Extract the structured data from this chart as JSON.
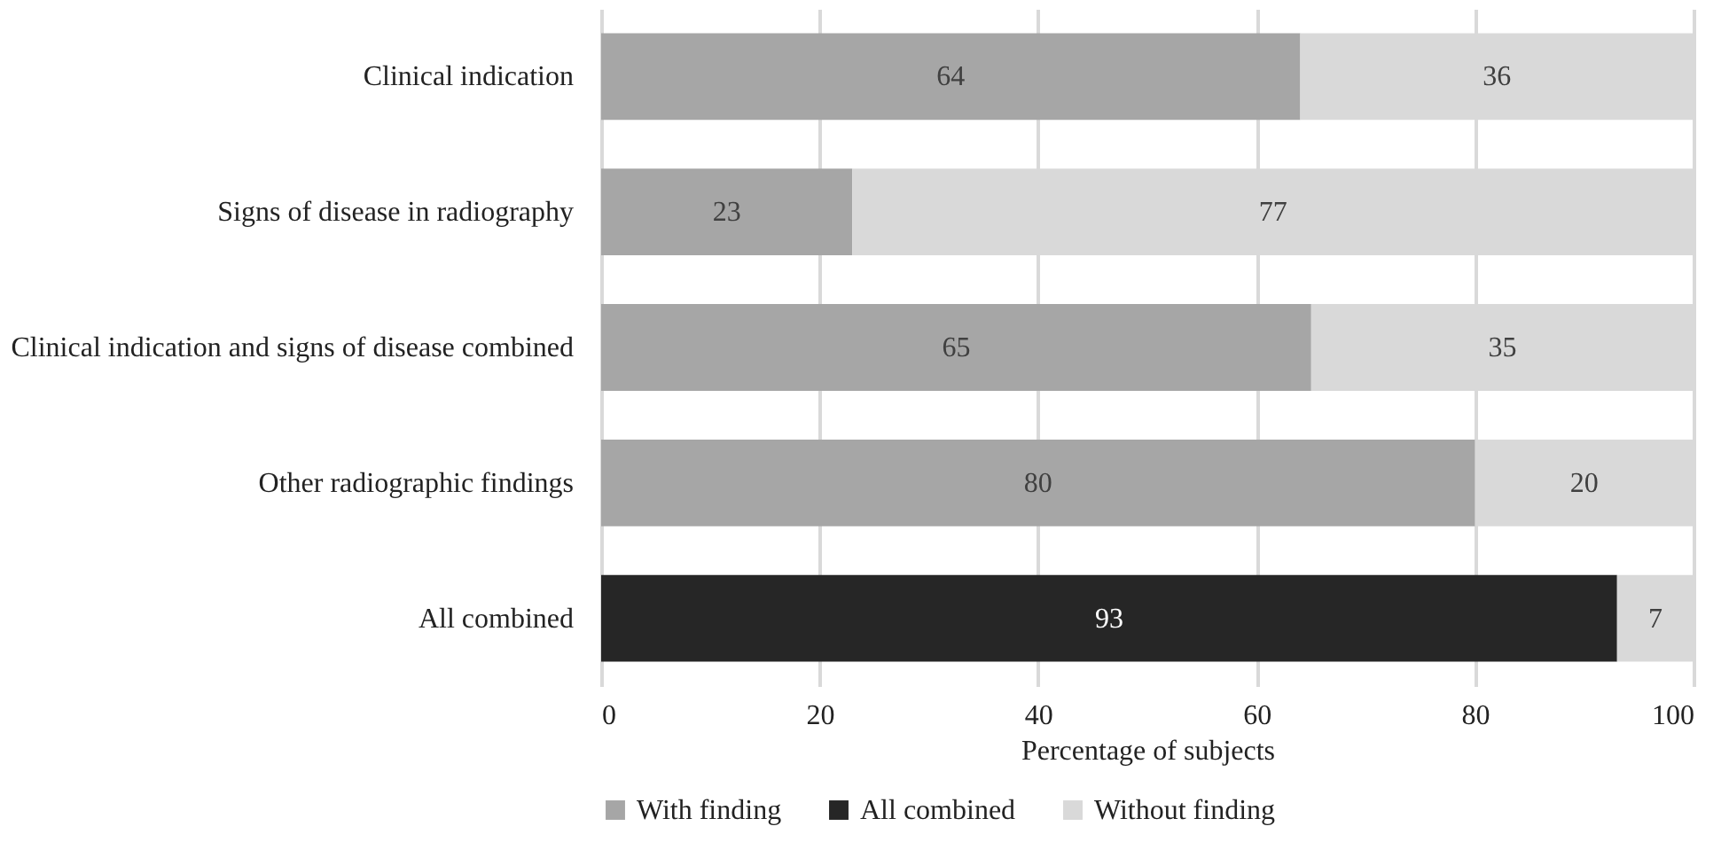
{
  "chart_data": {
    "type": "bar",
    "orientation": "horizontal",
    "stacked": true,
    "xlabel": "Percentage of subjects",
    "categories": [
      "Clinical indication",
      "Signs of disease in radiography",
      "Clinical indication and signs of disease combined",
      "Other radiographic findings",
      "All combined"
    ],
    "series": [
      {
        "name": "With finding",
        "color": "#a6a6a6",
        "values": [
          64,
          23,
          65,
          80,
          null
        ]
      },
      {
        "name": "All combined",
        "color": "#262626",
        "values": [
          null,
          null,
          null,
          null,
          93
        ]
      },
      {
        "name": "Without finding",
        "color": "#d9d9d9",
        "values": [
          36,
          77,
          35,
          20,
          7
        ]
      }
    ],
    "xlim": [
      0,
      100
    ],
    "xticks": [
      0,
      20,
      40,
      60,
      80,
      100
    ],
    "grid": "x",
    "legend": "bottom",
    "data_labels": true
  }
}
